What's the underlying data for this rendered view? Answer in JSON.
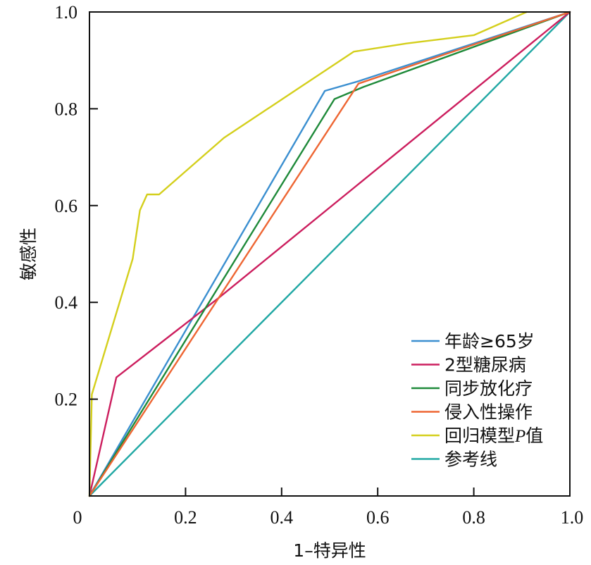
{
  "chart_data": {
    "type": "line",
    "title": "",
    "xlabel": "1–特异性",
    "ylabel": "敏感性",
    "xlim": [
      0,
      1
    ],
    "ylim": [
      0,
      1
    ],
    "grid": false,
    "legend_position": "bottom-right",
    "x_ticks": [
      {
        "value": 0,
        "label": "0"
      },
      {
        "value": 0.2,
        "label": "0.2"
      },
      {
        "value": 0.4,
        "label": "0.4"
      },
      {
        "value": 0.6,
        "label": "0.6"
      },
      {
        "value": 0.8,
        "label": "0.8"
      },
      {
        "value": 1.0,
        "label": "1.0"
      }
    ],
    "y_ticks": [
      {
        "value": 0.2,
        "label": "0.2"
      },
      {
        "value": 0.4,
        "label": "0.4"
      },
      {
        "value": 0.6,
        "label": "0.6"
      },
      {
        "value": 0.8,
        "label": "0.8"
      },
      {
        "value": 1.0,
        "label": "1.0"
      }
    ],
    "series": [
      {
        "name": "年龄≥65岁",
        "color": "#3b8fd0",
        "points": [
          [
            0,
            0
          ],
          [
            0.49,
            0.837
          ],
          [
            0.56,
            0.857
          ],
          [
            1.0,
            1.0
          ]
        ]
      },
      {
        "name": "2型糖尿病",
        "color": "#cc1e5e",
        "points": [
          [
            0,
            0
          ],
          [
            0.056,
            0.245
          ],
          [
            0.27,
            0.41
          ],
          [
            1.0,
            1.0
          ]
        ]
      },
      {
        "name": "同步放化疗",
        "color": "#1f8a3a",
        "points": [
          [
            0,
            0
          ],
          [
            0.51,
            0.82
          ],
          [
            0.57,
            0.845
          ],
          [
            1.0,
            1.0
          ]
        ]
      },
      {
        "name": "侵入性操作",
        "color": "#ee6633",
        "points": [
          [
            0,
            0
          ],
          [
            0.56,
            0.852
          ],
          [
            1.0,
            1.0
          ]
        ]
      },
      {
        "name": "回归模型P值",
        "name_prefix": "回归模型",
        "name_italic": "P",
        "name_suffix": "值",
        "color": "#d4cf1c",
        "points": [
          [
            0,
            0
          ],
          [
            0.005,
            0.21
          ],
          [
            0.09,
            0.49
          ],
          [
            0.105,
            0.59
          ],
          [
            0.12,
            0.623
          ],
          [
            0.145,
            0.623
          ],
          [
            0.28,
            0.74
          ],
          [
            0.55,
            0.918
          ],
          [
            0.66,
            0.935
          ],
          [
            0.8,
            0.952
          ],
          [
            0.91,
            1.0
          ]
        ]
      },
      {
        "name": "参考线",
        "color": "#21a8a4",
        "points": [
          [
            0,
            0
          ],
          [
            1.0,
            1.0
          ]
        ]
      }
    ]
  }
}
